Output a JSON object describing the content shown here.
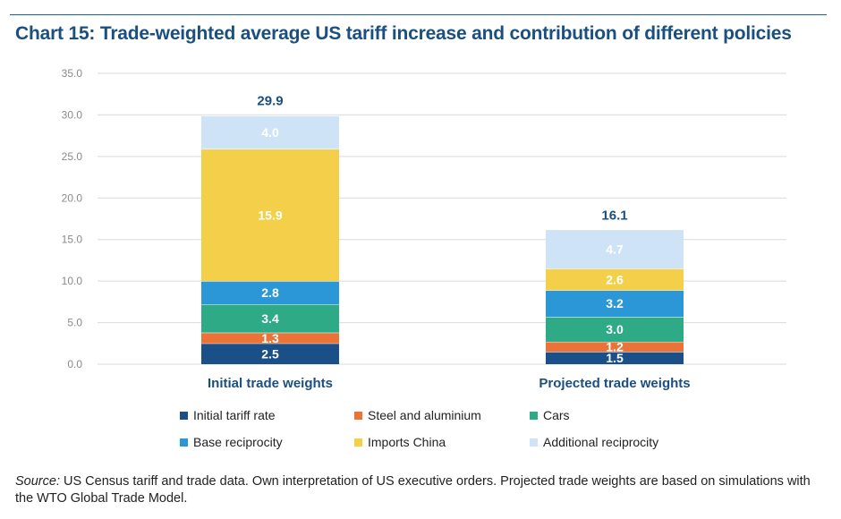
{
  "title": "Chart 15: Trade-weighted average US tariff increase and contribution of different policies",
  "colors": {
    "initial_tariff_rate": "#1a4f87",
    "steel_and_aluminium": "#ea7337",
    "cars": "#2eab86",
    "base_reciprocity": "#2c97d6",
    "imports_china": "#f4cf4a",
    "additional_reciprocity": "#cfe3f6",
    "axis_text": "#8a8a8a",
    "total_label": "#1a4f80",
    "grid": "#d9d9d9"
  },
  "chart_data": {
    "type": "bar",
    "stacked": true,
    "title": "Chart 15: Trade-weighted average US tariff increase and contribution of different policies",
    "xlabel": "",
    "ylabel": "",
    "ylim": [
      0,
      35
    ],
    "yticks": [
      "0.0",
      "5.0",
      "10.0",
      "15.0",
      "20.0",
      "25.0",
      "30.0",
      "35.0"
    ],
    "ytick_values": [
      0,
      5,
      10,
      15,
      20,
      25,
      30,
      35
    ],
    "grid": true,
    "categories": [
      "Initial trade weights",
      "Projected trade weights"
    ],
    "totals": [
      29.9,
      16.1
    ],
    "total_labels": [
      "29.9",
      "16.1"
    ],
    "series": [
      {
        "name": "Initial tariff rate",
        "key": "initial_tariff_rate",
        "values": [
          2.5,
          1.5
        ],
        "labels": [
          "2.5",
          "1.5"
        ]
      },
      {
        "name": "Steel and aluminium",
        "key": "steel_and_aluminium",
        "values": [
          1.3,
          1.2
        ],
        "labels": [
          "1.3",
          "1.2"
        ]
      },
      {
        "name": "Cars",
        "key": "cars",
        "values": [
          3.4,
          3.0
        ],
        "labels": [
          "3.4",
          "3.0"
        ]
      },
      {
        "name": "Base reciprocity",
        "key": "base_reciprocity",
        "values": [
          2.8,
          3.2
        ],
        "labels": [
          "2.8",
          "3.2"
        ]
      },
      {
        "name": "Imports China",
        "key": "imports_china",
        "values": [
          15.9,
          2.6
        ],
        "labels": [
          "15.9",
          "2.6"
        ]
      },
      {
        "name": "Additional reciprocity",
        "key": "additional_reciprocity",
        "values": [
          4.0,
          4.7
        ],
        "labels": [
          "4.0",
          "4.7"
        ]
      }
    ],
    "legend_position": "bottom"
  },
  "legend": {
    "items": [
      {
        "label": "Initial tariff rate",
        "key": "initial_tariff_rate"
      },
      {
        "label": "Steel and aluminium",
        "key": "steel_and_aluminium"
      },
      {
        "label": "Cars",
        "key": "cars"
      },
      {
        "label": "Base reciprocity",
        "key": "base_reciprocity"
      },
      {
        "label": "Imports China",
        "key": "imports_china"
      },
      {
        "label": "Additional reciprocity",
        "key": "additional_reciprocity"
      }
    ]
  },
  "source": {
    "label": "Source:",
    "text": " US Census tariff and trade data. Own interpretation of US executive orders. Projected trade weights are based on simulations with the WTO Global Trade Model."
  }
}
